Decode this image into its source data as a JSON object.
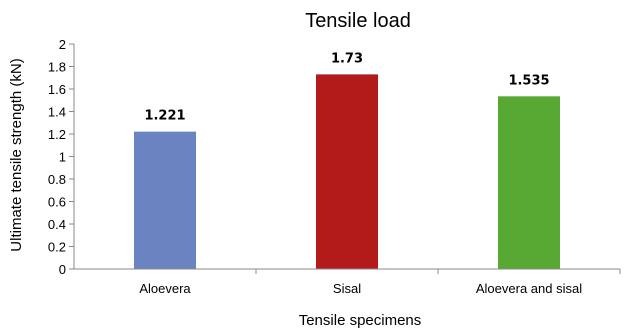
{
  "chart_data": {
    "type": "bar",
    "title": "Tensile load",
    "xlabel": "Tensile specimens",
    "ylabel": "Ultimate tensile strength (kN)",
    "categories": [
      "Aloevera",
      "Sisal",
      "Aloevera and sisal"
    ],
    "values": [
      1.221,
      1.73,
      1.535
    ],
    "data_labels": [
      "1.221",
      "1.73",
      "1.535"
    ],
    "bar_colors": [
      "#6a84c2",
      "#b31b1b",
      "#58a834"
    ],
    "ylim": [
      0,
      2
    ],
    "yticks": [
      "0",
      "0.2",
      "0.4",
      "0.6",
      "0.8",
      "1",
      "1.2",
      "1.4",
      "1.6",
      "1.8",
      "2"
    ],
    "grid": false,
    "legend": "none"
  }
}
